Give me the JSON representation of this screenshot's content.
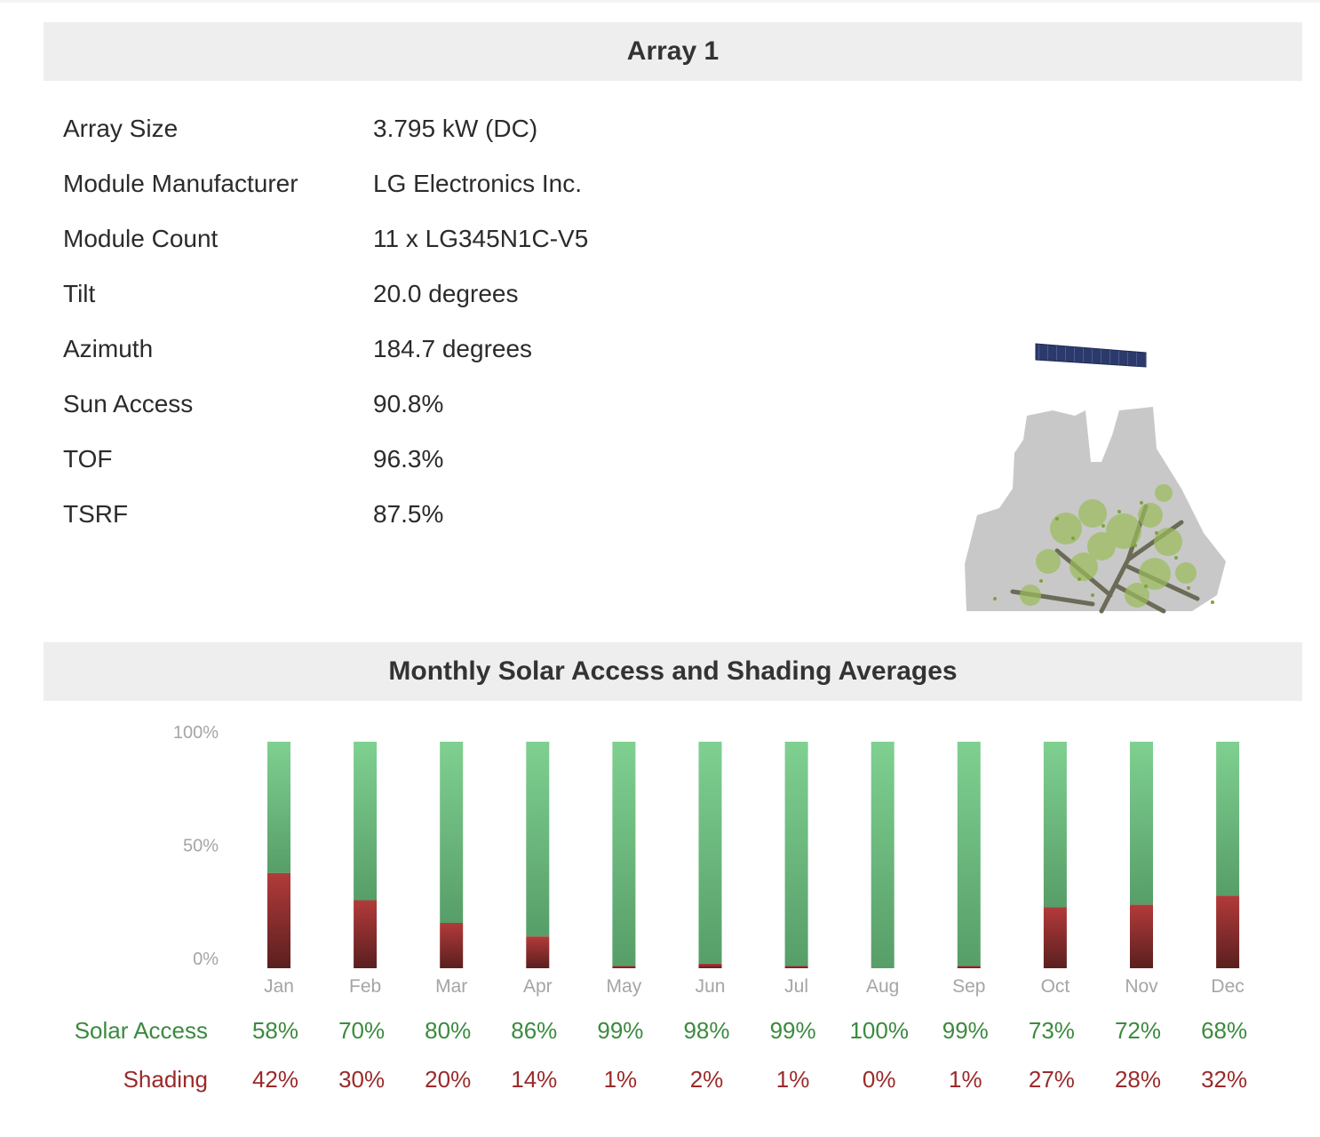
{
  "array_section": {
    "title": "Array 1",
    "properties": [
      {
        "label": "Array Size",
        "value": "3.795 kW (DC)"
      },
      {
        "label": "Module Manufacturer",
        "value": "LG Electronics Inc."
      },
      {
        "label": "Module Count",
        "value": "11 x LG345N1C-V5"
      },
      {
        "label": "Tilt",
        "value": "20.0 degrees"
      },
      {
        "label": "Azimuth",
        "value": "184.7 degrees"
      },
      {
        "label": "Sun Access",
        "value": "90.8%"
      },
      {
        "label": "TOF",
        "value": "96.3%"
      },
      {
        "label": "TSRF",
        "value": "87.5%"
      }
    ]
  },
  "chart_section": {
    "title": "Monthly Solar Access and Shading Averages"
  },
  "chart_data": {
    "type": "bar",
    "stacked": true,
    "title": "Monthly Solar Access and Shading Averages",
    "categories": [
      "Jan",
      "Feb",
      "Mar",
      "Apr",
      "May",
      "Jun",
      "Jul",
      "Aug",
      "Sep",
      "Oct",
      "Nov",
      "Dec"
    ],
    "y_ticks": [
      "100%",
      "50%",
      "0%"
    ],
    "ylim": [
      0,
      100
    ],
    "series": [
      {
        "name": "Solar Access",
        "values": [
          58,
          70,
          80,
          86,
          99,
          98,
          99,
          100,
          99,
          73,
          72,
          68
        ],
        "color": "#6fbf84"
      },
      {
        "name": "Shading",
        "values": [
          42,
          30,
          20,
          14,
          1,
          2,
          1,
          0,
          1,
          27,
          28,
          32
        ],
        "color": "#9b2a2a"
      }
    ],
    "grid": false
  },
  "stats_table": {
    "access_label": "Solar Access",
    "shading_label": "Shading",
    "access_values": [
      "58%",
      "70%",
      "80%",
      "86%",
      "99%",
      "98%",
      "99%",
      "100%",
      "99%",
      "73%",
      "72%",
      "68%"
    ],
    "shading_values": [
      "42%",
      "30%",
      "20%",
      "14%",
      "1%",
      "2%",
      "1%",
      "0%",
      "1%",
      "27%",
      "28%",
      "32%"
    ]
  },
  "colors": {
    "header_bg": "#eeeeee",
    "access": "#3b8a3f",
    "shading": "#9b2a2a"
  },
  "icons": {
    "model": "roof-model-with-solar-panel-and-tree-image"
  }
}
